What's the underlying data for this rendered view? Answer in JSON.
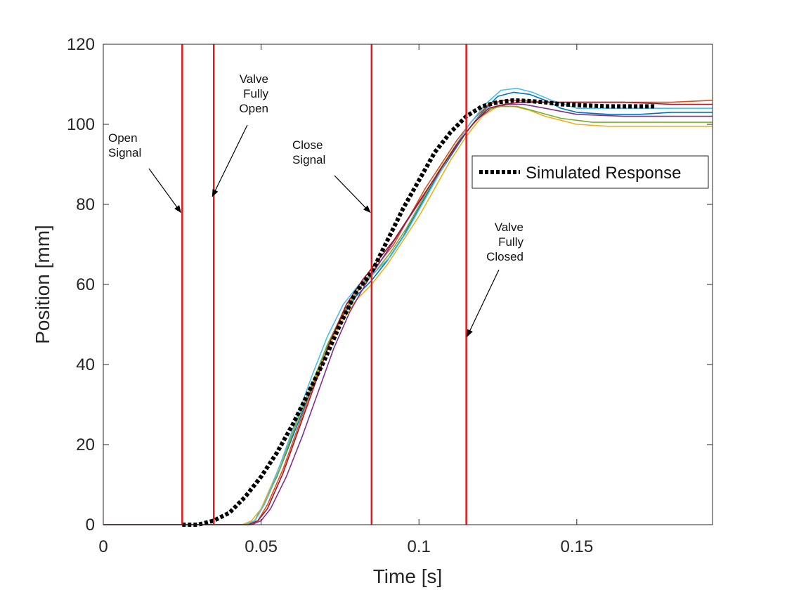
{
  "chart_data": {
    "type": "line",
    "title": "",
    "xlabel": "Time [s]",
    "ylabel": "Position [mm]",
    "xlim": [
      0,
      0.193
    ],
    "ylim": [
      0,
      120
    ],
    "xticks": [
      0,
      0.05,
      0.1,
      0.15
    ],
    "xtick_labels": [
      "0",
      "0.05",
      "0.1",
      "0.15"
    ],
    "yticks": [
      0,
      20,
      40,
      60,
      80,
      100,
      120
    ],
    "ytick_labels": [
      "0",
      "20",
      "40",
      "60",
      "80",
      "100",
      "120"
    ],
    "grid": false,
    "legend_position": "upper-right",
    "vertical_lines": {
      "color": "#e3191c",
      "x": [
        0.025,
        0.035,
        0.085,
        0.115
      ]
    },
    "annotations": [
      {
        "lines": [
          "Open",
          "Signal"
        ],
        "points_to": [
          0.025,
          78
        ]
      },
      {
        "lines": [
          "Valve",
          "Fully",
          "Open"
        ],
        "points_to": [
          0.035,
          82
        ]
      },
      {
        "lines": [
          "Close",
          "Signal"
        ],
        "points_to": [
          0.085,
          78
        ]
      },
      {
        "lines": [
          "Valve",
          "Fully",
          "Closed"
        ],
        "points_to": [
          0.1157,
          47
        ]
      }
    ],
    "series": [
      {
        "name": "Simulated Response",
        "style": "dotted",
        "color": "#000000",
        "x": [
          0.025,
          0.03,
          0.035,
          0.04,
          0.045,
          0.05,
          0.055,
          0.06,
          0.065,
          0.07,
          0.075,
          0.08,
          0.085,
          0.09,
          0.095,
          0.1,
          0.105,
          0.11,
          0.115,
          0.12,
          0.125,
          0.13,
          0.135,
          0.14,
          0.145,
          0.15,
          0.16,
          0.175
        ],
        "y": [
          0,
          0,
          1,
          3,
          7,
          12,
          18,
          25,
          33,
          41,
          50,
          58,
          63,
          71,
          79,
          86,
          93,
          98,
          102,
          104.5,
          105.5,
          106,
          105.8,
          105.5,
          105,
          104.8,
          104.5,
          104.5
        ]
      },
      {
        "color": "#0072bd",
        "x": [
          0,
          0.045,
          0.048,
          0.05,
          0.055,
          0.06,
          0.065,
          0.07,
          0.075,
          0.08,
          0.085,
          0.09,
          0.095,
          0.1,
          0.105,
          0.11,
          0.115,
          0.12,
          0.125,
          0.13,
          0.135,
          0.14,
          0.145,
          0.15,
          0.16,
          0.17,
          0.18,
          0.193
        ],
        "y": [
          0,
          0,
          1,
          4,
          12,
          22,
          32,
          43,
          51,
          57,
          61,
          66,
          72,
          79,
          86,
          92,
          98,
          103,
          107,
          108,
          107.5,
          106,
          104,
          103,
          102.5,
          102.5,
          103,
          103
        ]
      },
      {
        "color": "#d95319",
        "x": [
          0,
          0.046,
          0.049,
          0.052,
          0.057,
          0.062,
          0.067,
          0.072,
          0.077,
          0.082,
          0.087,
          0.092,
          0.097,
          0.102,
          0.107,
          0.112,
          0.117,
          0.122,
          0.127,
          0.132,
          0.14,
          0.15,
          0.165,
          0.18,
          0.193
        ],
        "y": [
          0,
          0,
          1,
          5,
          14,
          25,
          36,
          46,
          54,
          60,
          65,
          70,
          77,
          84,
          90,
          96,
          101,
          105,
          106,
          106,
          105.5,
          105.5,
          105.5,
          105.5,
          106
        ]
      },
      {
        "color": "#edb120",
        "x": [
          0,
          0.044,
          0.047,
          0.05,
          0.055,
          0.06,
          0.065,
          0.07,
          0.075,
          0.08,
          0.085,
          0.09,
          0.095,
          0.1,
          0.105,
          0.11,
          0.115,
          0.12,
          0.125,
          0.13,
          0.135,
          0.14,
          0.145,
          0.15,
          0.16,
          0.17,
          0.18,
          0.193
        ],
        "y": [
          0,
          0,
          1,
          4,
          13,
          23,
          33,
          42,
          50,
          56,
          60,
          65,
          71,
          77,
          84,
          91,
          97,
          102,
          104.5,
          104.5,
          103.5,
          102,
          101,
          100,
          99.5,
          99.5,
          99.5,
          99.5
        ]
      },
      {
        "color": "#7e2f8e",
        "x": [
          0,
          0.047,
          0.05,
          0.053,
          0.058,
          0.063,
          0.068,
          0.073,
          0.078,
          0.083,
          0.088,
          0.093,
          0.098,
          0.103,
          0.108,
          0.113,
          0.118,
          0.123,
          0.128,
          0.133,
          0.14,
          0.15,
          0.165,
          0.18,
          0.193
        ],
        "y": [
          0,
          0,
          1,
          4,
          12,
          22,
          33,
          44,
          53,
          60,
          66,
          72,
          78,
          84,
          90,
          96,
          101,
          104,
          105,
          105,
          104,
          102.5,
          102,
          102,
          102
        ]
      },
      {
        "color": "#77ac30",
        "x": [
          0,
          0.045,
          0.048,
          0.051,
          0.056,
          0.061,
          0.066,
          0.071,
          0.076,
          0.081,
          0.086,
          0.091,
          0.096,
          0.101,
          0.106,
          0.111,
          0.116,
          0.121,
          0.126,
          0.131,
          0.138,
          0.145,
          0.155,
          0.17,
          0.193
        ],
        "y": [
          0,
          0,
          1,
          5,
          14,
          25,
          35,
          45,
          53,
          59,
          63,
          68,
          74,
          81,
          88,
          94,
          99,
          103.5,
          104.5,
          104.5,
          103,
          101.5,
          100.5,
          100.5,
          100.5
        ]
      },
      {
        "color": "#4dbeee",
        "x": [
          0,
          0.045,
          0.048,
          0.051,
          0.056,
          0.061,
          0.066,
          0.071,
          0.076,
          0.081,
          0.086,
          0.091,
          0.096,
          0.101,
          0.106,
          0.111,
          0.116,
          0.121,
          0.126,
          0.131,
          0.136,
          0.142,
          0.15,
          0.165,
          0.18,
          0.193
        ],
        "y": [
          0,
          0,
          1,
          5,
          15,
          26,
          37,
          47,
          55,
          60,
          63,
          67,
          73,
          80,
          87,
          94,
          100,
          105,
          108.5,
          109,
          108,
          106,
          104,
          104,
          104,
          104
        ]
      },
      {
        "color": "#a2142f",
        "x": [
          0,
          0.046,
          0.049,
          0.052,
          0.057,
          0.062,
          0.067,
          0.072,
          0.077,
          0.082,
          0.087,
          0.092,
          0.097,
          0.102,
          0.107,
          0.112,
          0.117,
          0.122,
          0.127,
          0.132,
          0.14,
          0.15,
          0.165,
          0.18,
          0.193
        ],
        "y": [
          0,
          0,
          1,
          4,
          13,
          24,
          35,
          46,
          55,
          61,
          66,
          71,
          77,
          83,
          89,
          95,
          100,
          104,
          105,
          105.5,
          105.5,
          105.5,
          105.5,
          105,
          105
        ]
      }
    ],
    "legend": {
      "entries": [
        "Simulated Response"
      ]
    }
  }
}
